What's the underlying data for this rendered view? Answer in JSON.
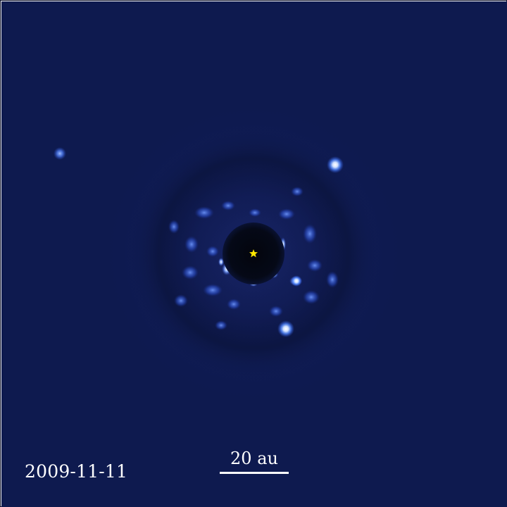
{
  "observation": {
    "date": "2009-11-11",
    "scale_bar_label": "20 au"
  },
  "colors": {
    "background": "#0e1a4f",
    "mask": "#050917",
    "speckle": "#3f6fff",
    "planet": "#e6f0ff",
    "star_marker": "#ffe600"
  },
  "objects": [
    {
      "name": "host-star-marker",
      "icon": "star-icon"
    },
    {
      "name": "planet-b"
    },
    {
      "name": "planet-c"
    },
    {
      "name": "planet-d"
    },
    {
      "name": "planet-e"
    }
  ]
}
